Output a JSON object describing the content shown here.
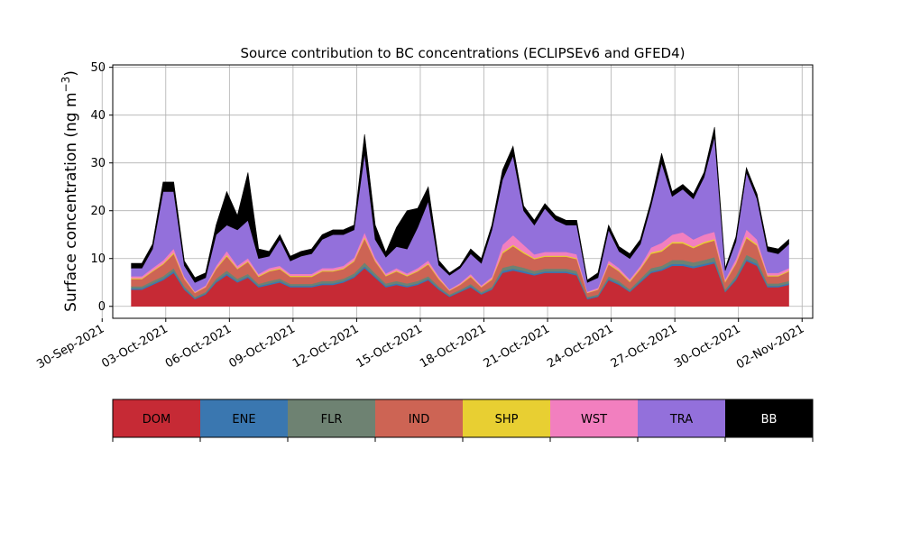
{
  "chart_data": {
    "type": "area",
    "stacked": true,
    "title": "Source contribution to BC concentrations (ECLIPSEv6 and GFED4)",
    "ylabel": "Surface concentration (ng m",
    "ylabel_unit_exponent": "−3",
    "ylabel_close": ")",
    "xlabel": "",
    "grid": true,
    "ylim": [
      -2.5,
      50.5
    ],
    "xlim": [
      "2021-09-30T12:00",
      "2021-11-02T12:00"
    ],
    "yticks": [
      0,
      10,
      20,
      30,
      40,
      50
    ],
    "xticks": [
      "2021-09-30",
      "2021-10-03",
      "2021-10-06",
      "2021-10-09",
      "2021-10-12",
      "2021-10-15",
      "2021-10-18",
      "2021-10-21",
      "2021-10-24",
      "2021-10-27",
      "2021-10-30",
      "2021-11-02"
    ],
    "xtick_labels": [
      "30-Sep-2021",
      "03-Oct-2021",
      "06-Oct-2021",
      "09-Oct-2021",
      "12-Oct-2021",
      "15-Oct-2021",
      "18-Oct-2021",
      "21-Oct-2021",
      "24-Oct-2021",
      "27-Oct-2021",
      "30-Oct-2021",
      "02-Nov-2021"
    ],
    "legend_position": "below",
    "x": [
      "2021-10-01T09:00",
      "2021-10-01T21:00",
      "2021-10-02T09:00",
      "2021-10-02T21:00",
      "2021-10-03T09:00",
      "2021-10-03T21:00",
      "2021-10-04T09:00",
      "2021-10-04T21:00",
      "2021-10-05T09:00",
      "2021-10-05T21:00",
      "2021-10-06T09:00",
      "2021-10-06T21:00",
      "2021-10-07T09:00",
      "2021-10-07T21:00",
      "2021-10-08T09:00",
      "2021-10-08T21:00",
      "2021-10-09T09:00",
      "2021-10-09T21:00",
      "2021-10-10T09:00",
      "2021-10-10T21:00",
      "2021-10-11T09:00",
      "2021-10-11T21:00",
      "2021-10-12T09:00",
      "2021-10-12T21:00",
      "2021-10-13T09:00",
      "2021-10-13T21:00",
      "2021-10-14T09:00",
      "2021-10-14T21:00",
      "2021-10-15T09:00",
      "2021-10-15T21:00",
      "2021-10-16T09:00",
      "2021-10-16T21:00",
      "2021-10-17T09:00",
      "2021-10-17T21:00",
      "2021-10-18T09:00",
      "2021-10-18T21:00",
      "2021-10-19T09:00",
      "2021-10-19T21:00",
      "2021-10-20T09:00",
      "2021-10-20T21:00",
      "2021-10-21T09:00",
      "2021-10-21T21:00",
      "2021-10-22T09:00",
      "2021-10-22T21:00",
      "2021-10-23T09:00",
      "2021-10-23T21:00",
      "2021-10-24T09:00",
      "2021-10-24T21:00",
      "2021-10-25T09:00",
      "2021-10-25T21:00",
      "2021-10-26T09:00",
      "2021-10-26T21:00",
      "2021-10-27T09:00",
      "2021-10-27T21:00",
      "2021-10-28T09:00",
      "2021-10-28T21:00",
      "2021-10-29T09:00",
      "2021-10-29T21:00",
      "2021-10-30T09:00",
      "2021-10-30T21:00",
      "2021-10-31T09:00",
      "2021-10-31T21:00",
      "2021-11-01T09:00"
    ],
    "series": [
      {
        "name": "DOM",
        "color": "#c62a35",
        "values": [
          3.5,
          3.5,
          4.5,
          5.5,
          7,
          3.5,
          1.5,
          2.5,
          5,
          6.5,
          5,
          6,
          4,
          4.5,
          5,
          4,
          4,
          4,
          4.5,
          4.5,
          5,
          6,
          8,
          6,
          4,
          4.5,
          4,
          4.5,
          5.5,
          3.5,
          2,
          3,
          4,
          2.5,
          3.5,
          7,
          7.5,
          7,
          6.5,
          7,
          7,
          7,
          6.5,
          1.5,
          2,
          5.5,
          4.5,
          3,
          5,
          7,
          7.5,
          8.5,
          8.5,
          8,
          8.5,
          9,
          3,
          5.5,
          9.5,
          8.5,
          4,
          4,
          4.5
        ]
      },
      {
        "name": "ENE",
        "color": "#3a77b0",
        "values": [
          0.3,
          0.3,
          0.3,
          0.3,
          0.4,
          0.3,
          0.2,
          0.2,
          0.3,
          0.4,
          0.3,
          0.3,
          0.3,
          0.3,
          0.3,
          0.3,
          0.3,
          0.3,
          0.3,
          0.3,
          0.3,
          0.3,
          0.4,
          0.3,
          0.3,
          0.3,
          0.3,
          0.3,
          0.3,
          0.3,
          0.2,
          0.2,
          0.3,
          0.2,
          0.2,
          0.4,
          0.4,
          0.4,
          0.3,
          0.3,
          0.3,
          0.3,
          0.3,
          0.2,
          0.2,
          0.3,
          0.3,
          0.2,
          0.3,
          0.3,
          0.3,
          0.4,
          0.4,
          0.4,
          0.4,
          0.4,
          0.2,
          0.3,
          0.4,
          0.4,
          0.3,
          0.3,
          0.3
        ]
      },
      {
        "name": "FLR",
        "color": "#6e8272",
        "values": [
          0.4,
          0.4,
          0.5,
          0.5,
          0.6,
          0.4,
          0.3,
          0.3,
          0.5,
          0.6,
          0.5,
          0.5,
          0.4,
          0.5,
          0.5,
          0.4,
          0.4,
          0.4,
          0.5,
          0.5,
          0.5,
          0.6,
          0.8,
          0.6,
          0.5,
          0.5,
          0.5,
          0.5,
          0.5,
          0.4,
          0.3,
          0.3,
          0.4,
          0.3,
          0.4,
          0.7,
          0.7,
          0.7,
          0.6,
          0.6,
          0.6,
          0.6,
          0.6,
          0.3,
          0.3,
          0.5,
          0.5,
          0.4,
          0.5,
          0.7,
          0.7,
          0.8,
          0.8,
          0.8,
          0.8,
          0.9,
          0.4,
          0.6,
          0.9,
          0.8,
          0.5,
          0.5,
          0.5
        ]
      },
      {
        "name": "IND",
        "color": "#cd6454",
        "values": [
          1.5,
          1.5,
          2,
          2.5,
          3,
          1.5,
          0.8,
          1,
          2,
          3,
          2,
          2.5,
          1.5,
          2,
          2,
          1.5,
          1.5,
          1.5,
          2,
          2,
          2,
          2.5,
          5,
          2.5,
          1.5,
          2,
          1.5,
          2,
          2.5,
          1.5,
          0.8,
          1,
          1.5,
          1,
          1.5,
          3,
          4,
          3,
          2.5,
          2.5,
          2.5,
          2.5,
          2.5,
          0.8,
          1,
          2.5,
          2,
          1.5,
          2,
          3,
          3,
          3.5,
          3.5,
          3,
          3.5,
          3.5,
          1.5,
          2.5,
          3.5,
          3,
          1.5,
          1.5,
          2
        ]
      },
      {
        "name": "SHP",
        "color": "#e8cf32",
        "values": [
          0.2,
          0.2,
          0.2,
          0.2,
          0.3,
          0.2,
          0.1,
          0.1,
          0.2,
          0.3,
          0.2,
          0.2,
          0.2,
          0.2,
          0.2,
          0.2,
          0.2,
          0.2,
          0.2,
          0.2,
          0.2,
          0.2,
          0.3,
          0.2,
          0.2,
          0.2,
          0.2,
          0.2,
          0.2,
          0.2,
          0.1,
          0.1,
          0.2,
          0.1,
          0.2,
          0.3,
          0.3,
          0.3,
          0.2,
          0.2,
          0.2,
          0.2,
          0.2,
          0.1,
          0.1,
          0.2,
          0.2,
          0.2,
          0.2,
          0.3,
          0.3,
          0.3,
          0.3,
          0.3,
          0.3,
          0.3,
          0.2,
          0.2,
          0.3,
          0.3,
          0.2,
          0.2,
          0.2
        ]
      },
      {
        "name": "WST",
        "color": "#f27fbf",
        "values": [
          0.4,
          0.4,
          0.5,
          0.6,
          0.8,
          0.4,
          0.2,
          0.3,
          0.5,
          0.8,
          0.5,
          0.6,
          0.4,
          0.5,
          0.5,
          0.4,
          0.4,
          0.4,
          0.5,
          0.5,
          0.5,
          0.6,
          1,
          0.6,
          0.4,
          0.5,
          0.4,
          0.5,
          0.6,
          0.4,
          0.2,
          0.3,
          0.4,
          0.3,
          0.4,
          1.5,
          2,
          1.5,
          0.8,
          0.8,
          0.8,
          0.8,
          0.8,
          0.2,
          0.3,
          0.6,
          0.5,
          0.4,
          0.5,
          1,
          1.5,
          1.5,
          2,
          1.5,
          1.5,
          1.5,
          0.4,
          0.8,
          1.5,
          1,
          0.5,
          0.5,
          0.5
        ]
      },
      {
        "name": "TRA",
        "color": "#9370db",
        "values": [
          1.7,
          1.7,
          4,
          14.4,
          11.9,
          2.2,
          1.9,
          1.6,
          6.5,
          5.4,
          7.5,
          7.9,
          3.2,
          2.5,
          5.5,
          2.7,
          3.7,
          4.2,
          6,
          7,
          6.5,
          5.8,
          16.5,
          3.8,
          3.4,
          4.5,
          5.1,
          8.5,
          12.4,
          2.3,
          2.9,
          3.1,
          4.2,
          4.6,
          9.8,
          13.6,
          16.6,
          7.1,
          6.1,
          9.1,
          6.6,
          5.6,
          6.1,
          1.9,
          2.1,
          6.4,
          3.5,
          4.3,
          4.5,
          8.7,
          16.7,
          8,
          9,
          8.5,
          12,
          19.9,
          1.8,
          3.6,
          11.9,
          8.5,
          4.5,
          4,
          5
        ]
      },
      {
        "name": "BB",
        "color": "#000000",
        "values": [
          1,
          1,
          1,
          2,
          2,
          1,
          1,
          1,
          2,
          7,
          3,
          10,
          2,
          1,
          1,
          1,
          1,
          1,
          1,
          1,
          1,
          1,
          4,
          3,
          1,
          4,
          8,
          4,
          3,
          1,
          0.5,
          0.5,
          1,
          1,
          1,
          2,
          2,
          1,
          1,
          1,
          1,
          1,
          1,
          0.5,
          1,
          1,
          1,
          1,
          1,
          1,
          2,
          1,
          1,
          1,
          1,
          2,
          0.5,
          1,
          1,
          1,
          1,
          1,
          1
        ]
      }
    ]
  },
  "legend": {
    "items": [
      {
        "label": "DOM",
        "color": "#c62a35",
        "text_color": "#000000"
      },
      {
        "label": "ENE",
        "color": "#3a77b0",
        "text_color": "#000000"
      },
      {
        "label": "FLR",
        "color": "#6e8272",
        "text_color": "#000000"
      },
      {
        "label": "IND",
        "color": "#cd6454",
        "text_color": "#000000"
      },
      {
        "label": "SHP",
        "color": "#e8cf32",
        "text_color": "#000000"
      },
      {
        "label": "WST",
        "color": "#f27fbf",
        "text_color": "#000000"
      },
      {
        "label": "TRA",
        "color": "#9370db",
        "text_color": "#000000"
      },
      {
        "label": "BB",
        "color": "#000000",
        "text_color": "#ffffff"
      }
    ]
  }
}
